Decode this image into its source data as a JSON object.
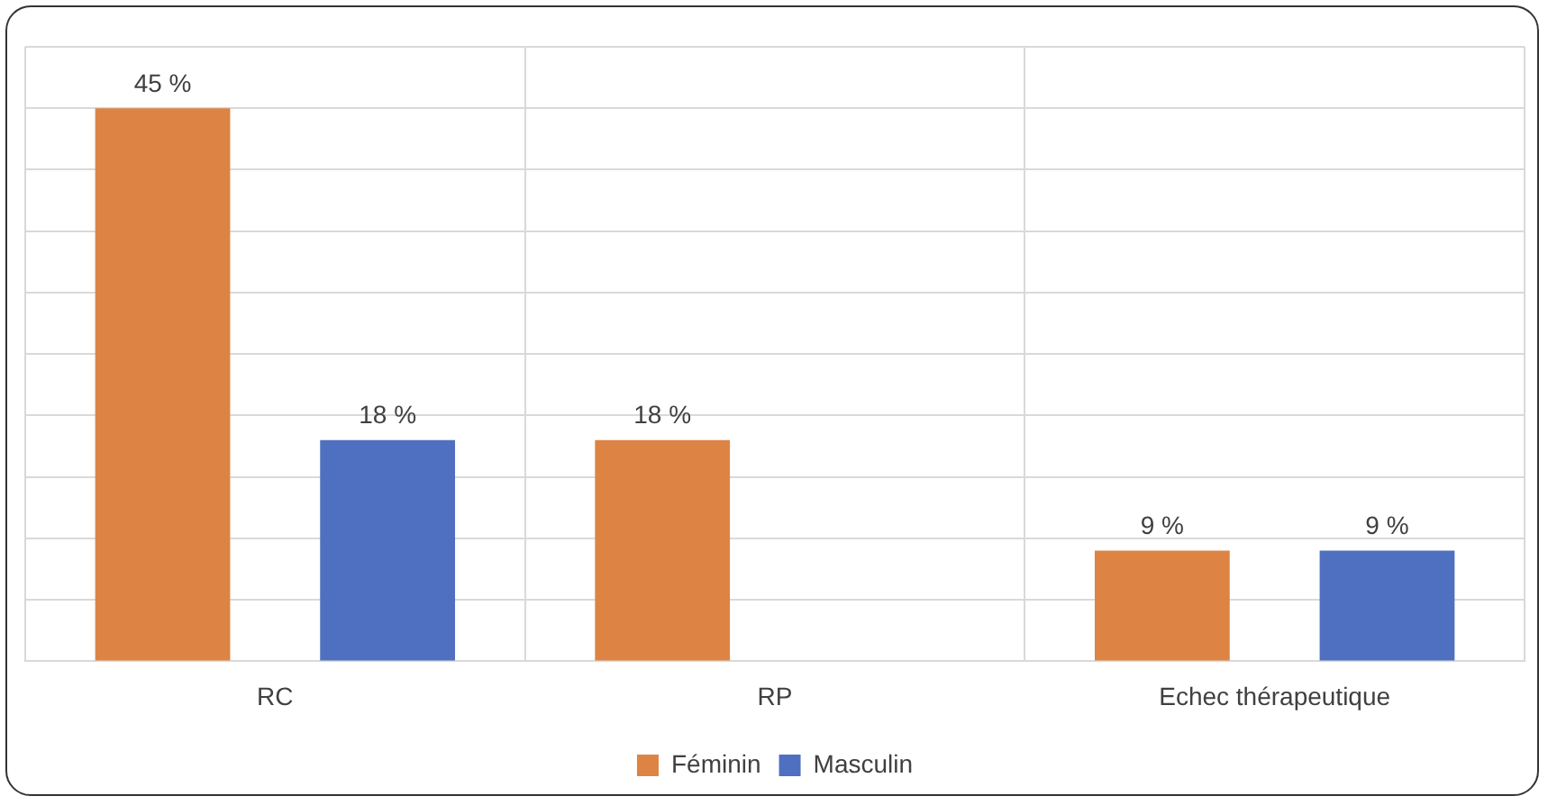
{
  "chart_data": {
    "type": "bar",
    "categories": [
      "RC",
      "RP",
      "Echec thérapeutique"
    ],
    "series": [
      {
        "name": "Féminin",
        "color": "#dd8444",
        "values": [
          45,
          18,
          9
        ],
        "value_labels": [
          "45 %",
          "18 %",
          "9 %"
        ]
      },
      {
        "name": "Masculin",
        "color": "#4f70c0",
        "values": [
          18,
          null,
          9
        ],
        "value_labels": [
          "18 %",
          null,
          "9 %"
        ]
      }
    ],
    "ylim": [
      0,
      50
    ],
    "yticks": [
      {
        "value": 0,
        "label": null
      },
      {
        "value": 5,
        "label": null
      },
      {
        "value": 10,
        "label": null
      },
      {
        "value": 15,
        "label": null
      },
      {
        "value": 20,
        "label": null
      },
      {
        "value": 25,
        "label": null
      },
      {
        "value": 30,
        "label": null
      },
      {
        "value": 35,
        "label": null
      },
      {
        "value": 40,
        "label": null
      },
      {
        "value": 45,
        "label": null
      },
      {
        "value": 50,
        "label": null
      }
    ],
    "grid": true,
    "legend": "bottom",
    "tick_labels": "x"
  }
}
